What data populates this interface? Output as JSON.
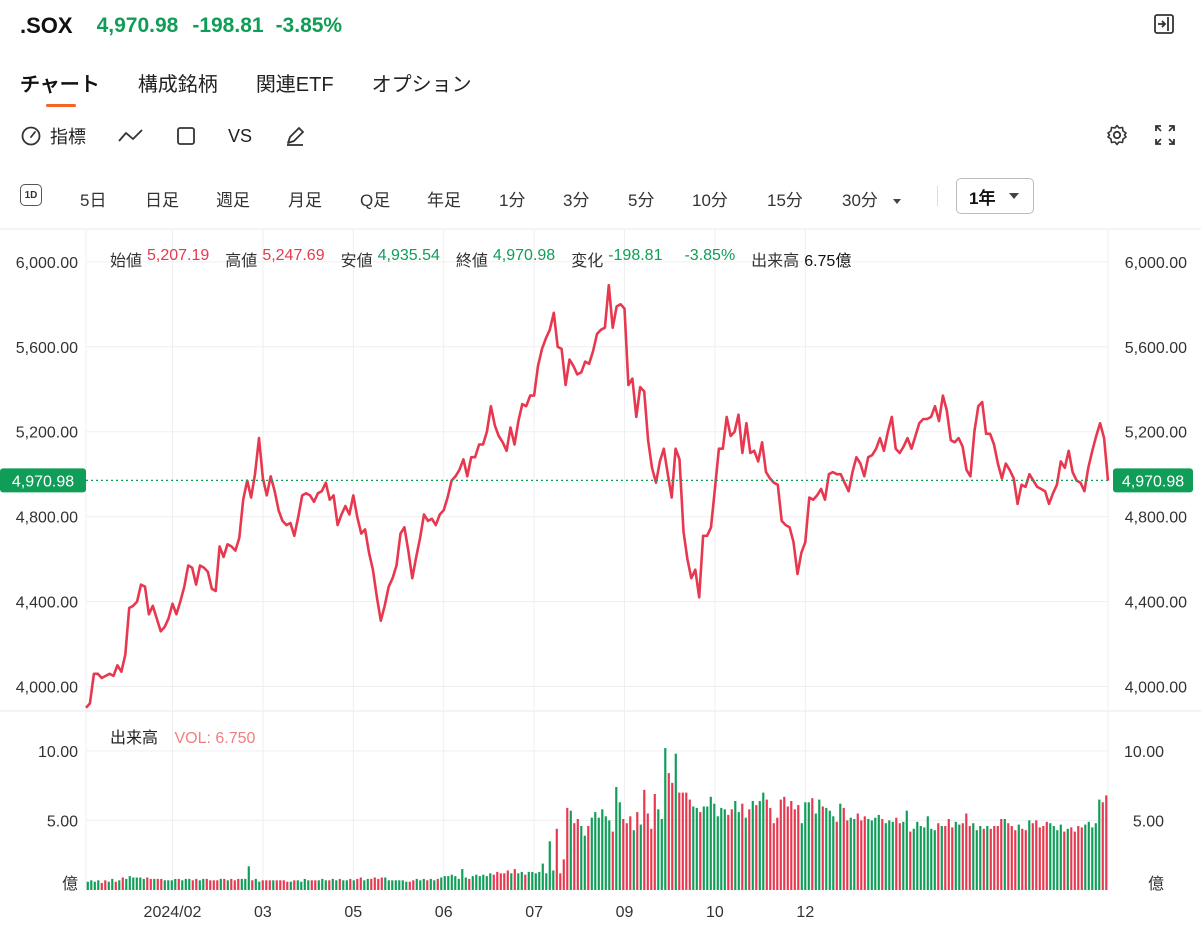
{
  "header": {
    "ticker": ".SOX",
    "price": "4,970.98",
    "change": "-198.81",
    "change_pct": "-3.85%",
    "color_down": "#0f9d58"
  },
  "tabs": [
    {
      "label": "チャート",
      "active": true
    },
    {
      "label": "構成銘柄",
      "active": false
    },
    {
      "label": "関連ETF",
      "active": false
    },
    {
      "label": "オプション",
      "active": false
    }
  ],
  "toolbar": {
    "indicator_label": "指標",
    "vs_label": "VS",
    "icons": [
      "gauge-icon",
      "line-chart-icon",
      "square-icon",
      "pencil-icon",
      "gear-icon",
      "fullscreen-icon",
      "exit-icon"
    ]
  },
  "periods": {
    "day_icon_label": "1D",
    "items": [
      "5日",
      "日足",
      "週足",
      "月足",
      "Q足",
      "年足",
      "1分",
      "3分",
      "5分",
      "10分",
      "15分",
      "30分"
    ],
    "range_selected": "1年"
  },
  "ohlc": {
    "open_label": "始値",
    "open": "5,207.19",
    "high_label": "高値",
    "high": "5,247.69",
    "low_label": "安値",
    "low": "4,935.54",
    "close_label": "終値",
    "close": "4,970.98",
    "change_label": "変化",
    "change": "-198.81",
    "change_pct": "-3.85%",
    "volume_label": "出来高",
    "volume": "6.75億"
  },
  "volume_legend": {
    "label": "出来高",
    "value": "VOL: 6.750"
  },
  "colors": {
    "up": "#0f9d58",
    "down": "#e8384f",
    "line": "#e8384f",
    "accent": "#f26522",
    "grid": "#efefef"
  },
  "chart_data": [
    {
      "type": "line",
      "name": "price",
      "y_ticks": [
        "6,000.00",
        "5,600.00",
        "5,200.00",
        "4,800.00",
        "4,400.00",
        "4,000.00"
      ],
      "y_tick_values": [
        6000,
        5600,
        5200,
        4800,
        4400,
        4000
      ],
      "ylim": [
        3880,
        6150
      ],
      "current_price_label": "4,970.98",
      "current_price": 4970.98,
      "x_tick_labels": [
        "2024/02",
        "03",
        "05",
        "06",
        "07",
        "09",
        "10",
        "12"
      ],
      "x_tick_index": [
        22,
        45,
        68,
        91,
        114,
        137,
        160,
        183
      ],
      "grid": true,
      "values": [
        3900,
        3920,
        4060,
        4060,
        4040,
        4050,
        4060,
        4050,
        4100,
        4070,
        4150,
        4370,
        4380,
        4400,
        4480,
        4470,
        4340,
        4380,
        4320,
        4260,
        4280,
        4320,
        4390,
        4340,
        4400,
        4470,
        4570,
        4560,
        4480,
        4570,
        4560,
        4540,
        4460,
        4450,
        4660,
        4610,
        4670,
        4660,
        4640,
        4700,
        4880,
        4970,
        4890,
        5000,
        5170,
        4980,
        4900,
        4990,
        4920,
        4830,
        4780,
        4760,
        4770,
        4710,
        4800,
        4900,
        4910,
        4900,
        4870,
        4910,
        4920,
        4960,
        4880,
        4900,
        4760,
        4810,
        4850,
        4810,
        4900,
        4800,
        4720,
        4740,
        4630,
        4550,
        4420,
        4310,
        4380,
        4470,
        4510,
        4570,
        4720,
        4750,
        4640,
        4510,
        4610,
        4700,
        4810,
        4780,
        4790,
        4760,
        4810,
        4830,
        4890,
        4970,
        4990,
        5020,
        5070,
        4990,
        5080,
        5080,
        5140,
        5140,
        5200,
        5320,
        5230,
        5180,
        5150,
        5110,
        5220,
        5140,
        5250,
        5330,
        5320,
        5370,
        5370,
        5510,
        5590,
        5640,
        5680,
        5760,
        5600,
        5590,
        5420,
        5540,
        5510,
        5470,
        5480,
        5530,
        5520,
        5580,
        5660,
        5680,
        5690,
        5890,
        5690,
        5790,
        5800,
        5780,
        5420,
        5450,
        5270,
        5410,
        5390,
        5160,
        5030,
        4960,
        5060,
        5120,
        5000,
        4890,
        5120,
        5070,
        4730,
        4600,
        4510,
        4550,
        4420,
        4710,
        4710,
        4750,
        4930,
        5120,
        5120,
        5270,
        5180,
        5200,
        5280,
        5100,
        5240,
        5100,
        5110,
        5060,
        5150,
        5010,
        4980,
        4960,
        4950,
        4780,
        4760,
        4750,
        4680,
        4530,
        4630,
        4680,
        4890,
        4880,
        4900,
        4930,
        4880,
        5000,
        5010,
        5000,
        5000,
        4960,
        4920,
        5010,
        5080,
        5050,
        4990,
        5080,
        5090,
        5120,
        5170,
        5110,
        5200,
        5270,
        5120,
        5100,
        5130,
        5170,
        5120,
        5180,
        5240,
        5260,
        5260,
        5270,
        5320,
        5250,
        5370,
        5300,
        5160,
        5150,
        5170,
        5130,
        5020,
        4990,
        5200,
        5320,
        5340,
        5190,
        5190,
        5140,
        5050,
        4980,
        5050,
        5020,
        4980,
        4860,
        4950,
        4940,
        5000,
        4970,
        4940,
        4930,
        4920,
        4860,
        4910,
        4950,
        5060,
        5030,
        5110,
        5010,
        4970,
        4960,
        4920,
        5030,
        5110,
        5180,
        5240,
        5170,
        4970
      ],
      "color": "#e8384f"
    },
    {
      "type": "bar",
      "name": "volume",
      "y_ticks": [
        "10.00",
        "5.00",
        "億"
      ],
      "y_tick_values": [
        10,
        5,
        0
      ],
      "ylim": [
        0,
        11.5
      ],
      "values": [
        0.6,
        0.7,
        0.6,
        0.7,
        0.5,
        0.7,
        0.6,
        0.8,
        0.6,
        0.7,
        0.9,
        0.8,
        1.0,
        0.9,
        0.9,
        0.9,
        0.8,
        0.9,
        0.8,
        0.8,
        0.8,
        0.8,
        0.7,
        0.7,
        0.7,
        0.8,
        0.8,
        0.7,
        0.8,
        0.8,
        0.7,
        0.8,
        0.7,
        0.8,
        0.8,
        0.7,
        0.7,
        0.7,
        0.8,
        0.8,
        0.7,
        0.8,
        0.7,
        0.8,
        0.8,
        0.8,
        1.7,
        0.7,
        0.8,
        0.6,
        0.7,
        0.7,
        0.7,
        0.7,
        0.7,
        0.7,
        0.7,
        0.6,
        0.6,
        0.7,
        0.7,
        0.6,
        0.8,
        0.7,
        0.7,
        0.7,
        0.7,
        0.8,
        0.7,
        0.7,
        0.8,
        0.7,
        0.8,
        0.7,
        0.7,
        0.8,
        0.7,
        0.8,
        0.9,
        0.7,
        0.8,
        0.8,
        0.9,
        0.8,
        0.9,
        0.9,
        0.7,
        0.7,
        0.7,
        0.7,
        0.7,
        0.6,
        0.6,
        0.7,
        0.8,
        0.7,
        0.8,
        0.7,
        0.8,
        0.7,
        0.8,
        0.9,
        1.0,
        1.0,
        1.1,
        1.0,
        0.8,
        1.5,
        0.9,
        0.8,
        1.0,
        1.1,
        1.0,
        1.1,
        1.0,
        1.2,
        1.1,
        1.3,
        1.2,
        1.2,
        1.4,
        1.2,
        1.5,
        1.2,
        1.3,
        1.1,
        1.3,
        1.3,
        1.2,
        1.3,
        1.9,
        1.2,
        3.5,
        1.4,
        4.4,
        1.2,
        2.2,
        5.9,
        5.7,
        4.8,
        5.1,
        4.6,
        3.9,
        4.6,
        5.2,
        5.6,
        5.2,
        5.8,
        5.3,
        5.0,
        4.2,
        7.4,
        6.3,
        5.1,
        4.8,
        5.3,
        4.3,
        5.6,
        4.7,
        7.2,
        5.5,
        4.4,
        6.9,
        5.8,
        5.1,
        10.2,
        8.4,
        7.7,
        9.8,
        7.0,
        7.0,
        7.0,
        6.5,
        6.0,
        5.9,
        5.6,
        6.0,
        6.0,
        6.7,
        6.2,
        5.3,
        5.9,
        5.8,
        5.4,
        5.8,
        6.4,
        5.6,
        6.2,
        5.2,
        5.8,
        6.4,
        6.1,
        6.4,
        7.0,
        6.5,
        5.9,
        4.8,
        5.2,
        6.5,
        6.7,
        6.0,
        6.4,
        5.8,
        6.1,
        4.8,
        6.3,
        6.3,
        6.6,
        5.5,
        6.5,
        6.0,
        5.9,
        5.7,
        5.3,
        4.9,
        6.2,
        5.9,
        5.0,
        5.2,
        5.1,
        5.5,
        5.0,
        5.3,
        5.1,
        5.0,
        5.2,
        5.4,
        5.1,
        4.8,
        5.0,
        4.9,
        5.2,
        4.8,
        4.9,
        5.7,
        4.2,
        4.4,
        4.9,
        4.6,
        4.5,
        5.3,
        4.4,
        4.3,
        4.8,
        4.6,
        4.6,
        5.1,
        4.5,
        4.9,
        4.7,
        4.8,
        5.5,
        4.6,
        4.8,
        4.3,
        4.6,
        4.4,
        4.6,
        4.4,
        4.6,
        4.6,
        5.1,
        5.1,
        4.8,
        4.6,
        4.3,
        4.7,
        4.4,
        4.3,
        5.0,
        4.8,
        5.0,
        4.5,
        4.6,
        4.9,
        4.8,
        4.6,
        4.3,
        4.7,
        4.2,
        4.4,
        4.5,
        4.2,
        4.6,
        4.5,
        4.7,
        4.9,
        4.5,
        4.8,
        6.5,
        6.3,
        6.8
      ]
    }
  ]
}
